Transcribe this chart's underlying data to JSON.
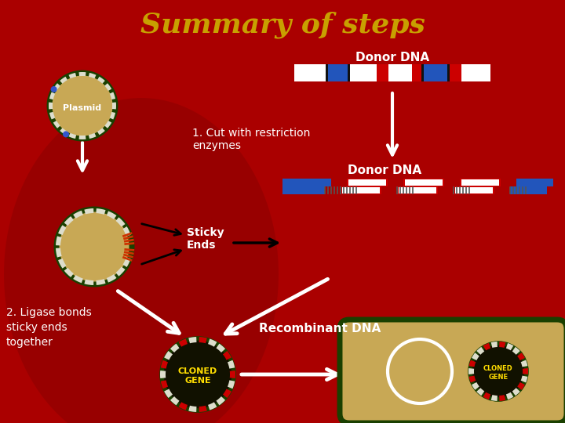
{
  "title": "Summary of steps",
  "title_color": "#C8A000",
  "title_fontsize": 26,
  "bg_color": "#AA0000",
  "donor_dna_label": "Donor DNA",
  "step1_label": "1. Cut with restriction\nenzymes",
  "step2_label": "2. Ligase bonds\nsticky ends\ntogether",
  "sticky_ends_label": "Sticky\nEnds",
  "recombinant_label": "Recombinant DNA",
  "plasmid_label": "Plasmid",
  "cloned_gene_label": "CLONED\nGENE",
  "dna_red": "#CC0000",
  "dna_white": "#FFFFFF",
  "dna_blue": "#2255BB",
  "dna_black": "#111111",
  "green_dark": "#1a4000",
  "green_mid": "#2d6a00",
  "green_light": "#4a9a10",
  "tan": "#C8A855",
  "plasmid_white_dash": "#DDDDCC"
}
